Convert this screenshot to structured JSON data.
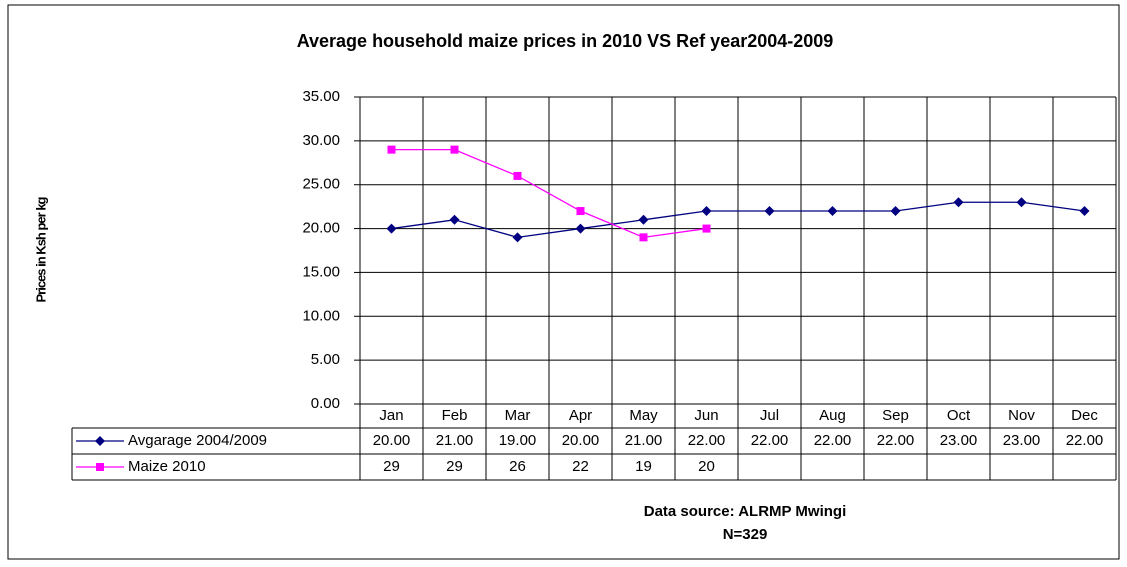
{
  "chart_data": {
    "type": "line",
    "title": "Average household maize prices in 2010 VS Ref year2004-2009",
    "ylabel": "Prices in Ksh per kg",
    "categories": [
      "Jan",
      "Feb",
      "Mar",
      "Apr",
      "May",
      "Jun",
      "Jul",
      "Aug",
      "Sep",
      "Oct",
      "Nov",
      "Dec"
    ],
    "series": [
      {
        "name": "Avgarage 2004/2009",
        "color": "#000080",
        "marker": "diamond",
        "values": [
          20,
          21,
          19,
          20,
          21,
          22,
          22,
          22,
          22,
          23,
          23,
          22
        ],
        "value_labels": [
          "20.00",
          "21.00",
          "19.00",
          "20.00",
          "21.00",
          "22.00",
          "22.00",
          "22.00",
          "22.00",
          "23.00",
          "23.00",
          "22.00"
        ]
      },
      {
        "name": "Maize 2010",
        "color": "#ff00ff",
        "marker": "square",
        "values": [
          29,
          29,
          26,
          22,
          19,
          20,
          null,
          null,
          null,
          null,
          null,
          null
        ]
      }
    ],
    "ylim": [
      0,
      35
    ],
    "yticks": [
      {
        "value": 0,
        "label": "0.00"
      },
      {
        "value": 5,
        "label": "5.00"
      },
      {
        "value": 10,
        "label": "10.00"
      },
      {
        "value": 15,
        "label": "15.00"
      },
      {
        "value": 20,
        "label": "20.00"
      },
      {
        "value": 25,
        "label": "25.00"
      },
      {
        "value": 30,
        "label": "30.00"
      },
      {
        "value": 35,
        "label": "35.00"
      }
    ],
    "grid": true,
    "annotations": [
      "Data source: ALRMP Mwingi",
      "N=329"
    ]
  }
}
